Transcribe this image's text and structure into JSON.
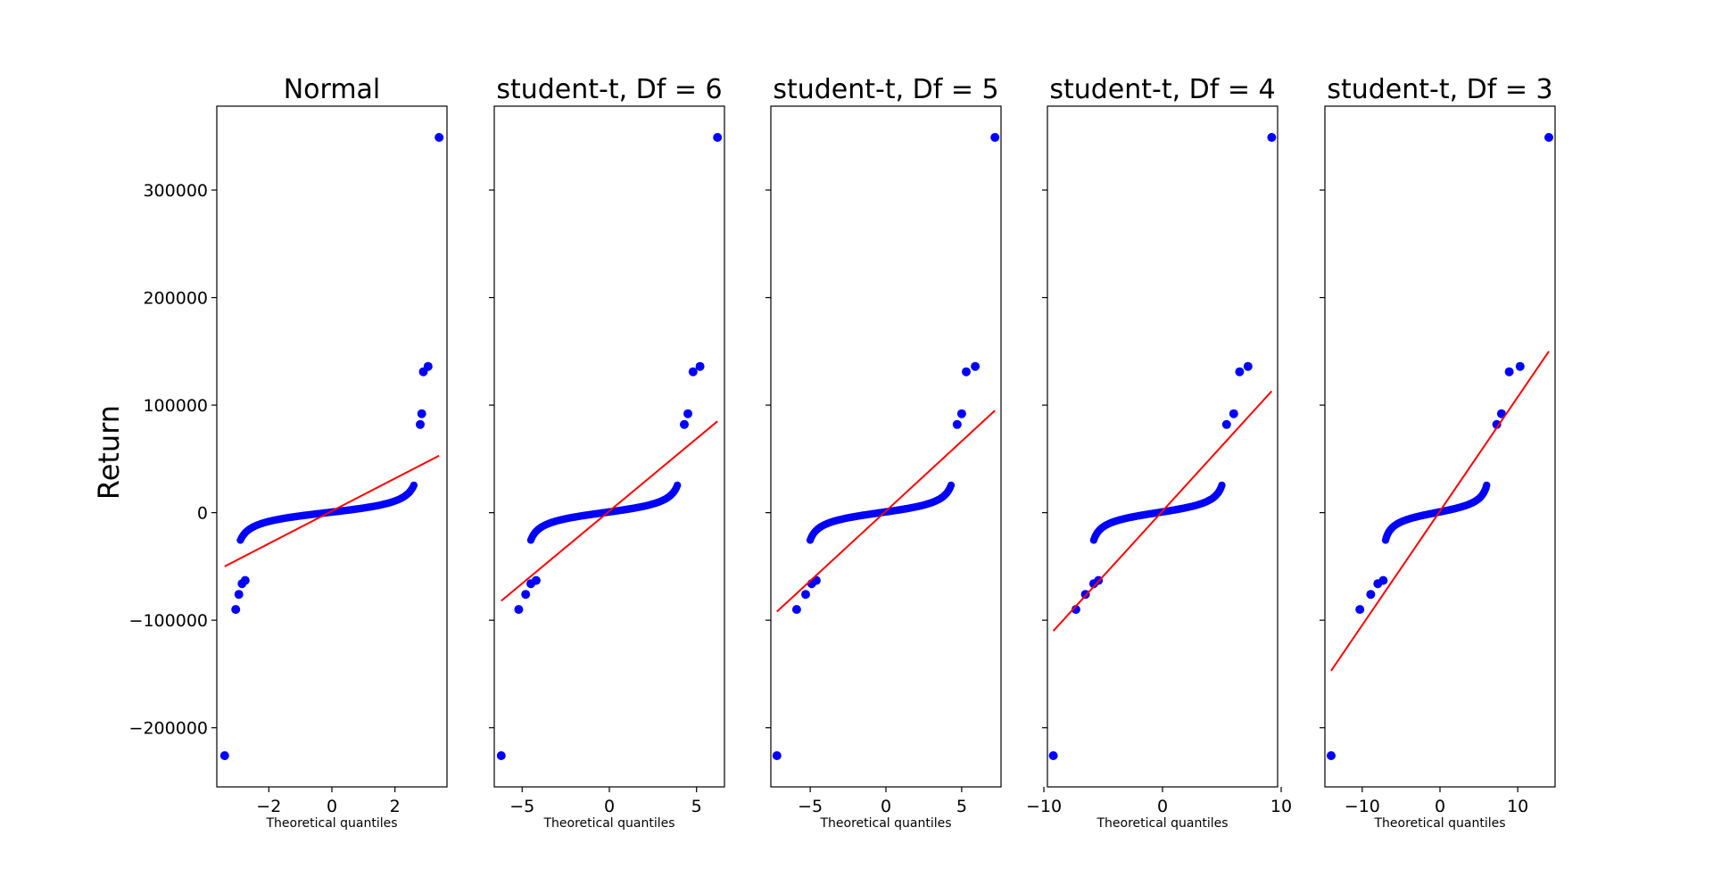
{
  "figure": {
    "ylabel": "Return",
    "xlabel": "Theoretical quantiles",
    "yticks": [
      -200000,
      -100000,
      0,
      100000,
      200000,
      300000
    ],
    "ylim": [
      -255000,
      378000
    ]
  },
  "chart_data": [
    {
      "type": "scatter",
      "title": "Normal",
      "xlabel": "Theoretical quantiles",
      "ylabel": "Return",
      "xlim": [
        -3.65,
        3.65
      ],
      "xticks": [
        -2,
        0,
        2
      ],
      "fit_line": {
        "x": [
          -3.4,
          3.4
        ],
        "y": [
          -50000,
          53000
        ]
      },
      "quantile_range": [
        -2.9,
        2.6
      ],
      "outliers": [
        {
          "x": -3.4,
          "y": -226000
        },
        {
          "x": -3.05,
          "y": -90000
        },
        {
          "x": -2.95,
          "y": -76000
        },
        {
          "x": -2.85,
          "y": -66000
        },
        {
          "x": -2.75,
          "y": -63000
        },
        {
          "x": 2.8,
          "y": 82000
        },
        {
          "x": 2.85,
          "y": 92000
        },
        {
          "x": 2.9,
          "y": 131000
        },
        {
          "x": 3.05,
          "y": 136000
        },
        {
          "x": 3.4,
          "y": 349000
        }
      ]
    },
    {
      "type": "scatter",
      "title": "student-t, Df = 6",
      "xlabel": "Theoretical quantiles",
      "xlim": [
        -6.6,
        6.6
      ],
      "xticks": [
        -5,
        0,
        5
      ],
      "fit_line": {
        "x": [
          -6.2,
          6.2
        ],
        "y": [
          -82000,
          85000
        ]
      },
      "quantile_range": [
        -4.5,
        3.9
      ],
      "outliers": [
        {
          "x": -6.2,
          "y": -226000
        },
        {
          "x": -5.2,
          "y": -90000
        },
        {
          "x": -4.8,
          "y": -76000
        },
        {
          "x": -4.5,
          "y": -66000
        },
        {
          "x": -4.2,
          "y": -63000
        },
        {
          "x": 4.3,
          "y": 82000
        },
        {
          "x": 4.5,
          "y": 92000
        },
        {
          "x": 4.8,
          "y": 131000
        },
        {
          "x": 5.2,
          "y": 136000
        },
        {
          "x": 6.2,
          "y": 349000
        }
      ]
    },
    {
      "type": "scatter",
      "title": "student-t, Df = 5",
      "xlabel": "Theoretical quantiles",
      "xlim": [
        -7.6,
        7.6
      ],
      "xticks": [
        -5,
        0,
        5
      ],
      "fit_line": {
        "x": [
          -7.2,
          7.2
        ],
        "y": [
          -92000,
          95000
        ]
      },
      "quantile_range": [
        -5.0,
        4.3
      ],
      "outliers": [
        {
          "x": -7.2,
          "y": -226000
        },
        {
          "x": -5.9,
          "y": -90000
        },
        {
          "x": -5.3,
          "y": -76000
        },
        {
          "x": -4.9,
          "y": -66000
        },
        {
          "x": -4.6,
          "y": -63000
        },
        {
          "x": 4.7,
          "y": 82000
        },
        {
          "x": 5.0,
          "y": 92000
        },
        {
          "x": 5.3,
          "y": 131000
        },
        {
          "x": 5.9,
          "y": 136000
        },
        {
          "x": 7.2,
          "y": 349000
        }
      ]
    },
    {
      "type": "scatter",
      "title": "student-t, Df = 4",
      "xlabel": "Theoretical quantiles",
      "xlim": [
        -9.7,
        9.7
      ],
      "xticks": [
        -10,
        0,
        10
      ],
      "fit_line": {
        "x": [
          -9.2,
          9.2
        ],
        "y": [
          -110000,
          113000
        ]
      },
      "quantile_range": [
        -5.8,
        5.0
      ],
      "outliers": [
        {
          "x": -9.2,
          "y": -226000
        },
        {
          "x": -7.3,
          "y": -90000
        },
        {
          "x": -6.5,
          "y": -76000
        },
        {
          "x": -5.8,
          "y": -66000
        },
        {
          "x": -5.4,
          "y": -63000
        },
        {
          "x": 5.4,
          "y": 82000
        },
        {
          "x": 6.0,
          "y": 92000
        },
        {
          "x": 6.5,
          "y": 131000
        },
        {
          "x": 7.2,
          "y": 136000
        },
        {
          "x": 9.2,
          "y": 349000
        }
      ]
    },
    {
      "type": "scatter",
      "title": "student-t, Df = 3",
      "xlabel": "Theoretical quantiles",
      "xlim": [
        -14.8,
        14.8
      ],
      "xticks": [
        -10,
        0,
        10
      ],
      "fit_line": {
        "x": [
          -14.0,
          14.0
        ],
        "y": [
          -147000,
          150000
        ]
      },
      "quantile_range": [
        -7.0,
        6.0
      ],
      "outliers": [
        {
          "x": -14.0,
          "y": -226000
        },
        {
          "x": -10.3,
          "y": -90000
        },
        {
          "x": -8.9,
          "y": -76000
        },
        {
          "x": -8.0,
          "y": -66000
        },
        {
          "x": -7.3,
          "y": -63000
        },
        {
          "x": 7.3,
          "y": 82000
        },
        {
          "x": 7.9,
          "y": 92000
        },
        {
          "x": 8.9,
          "y": 131000
        },
        {
          "x": 10.3,
          "y": 136000
        },
        {
          "x": 14.0,
          "y": 349000
        }
      ]
    }
  ]
}
